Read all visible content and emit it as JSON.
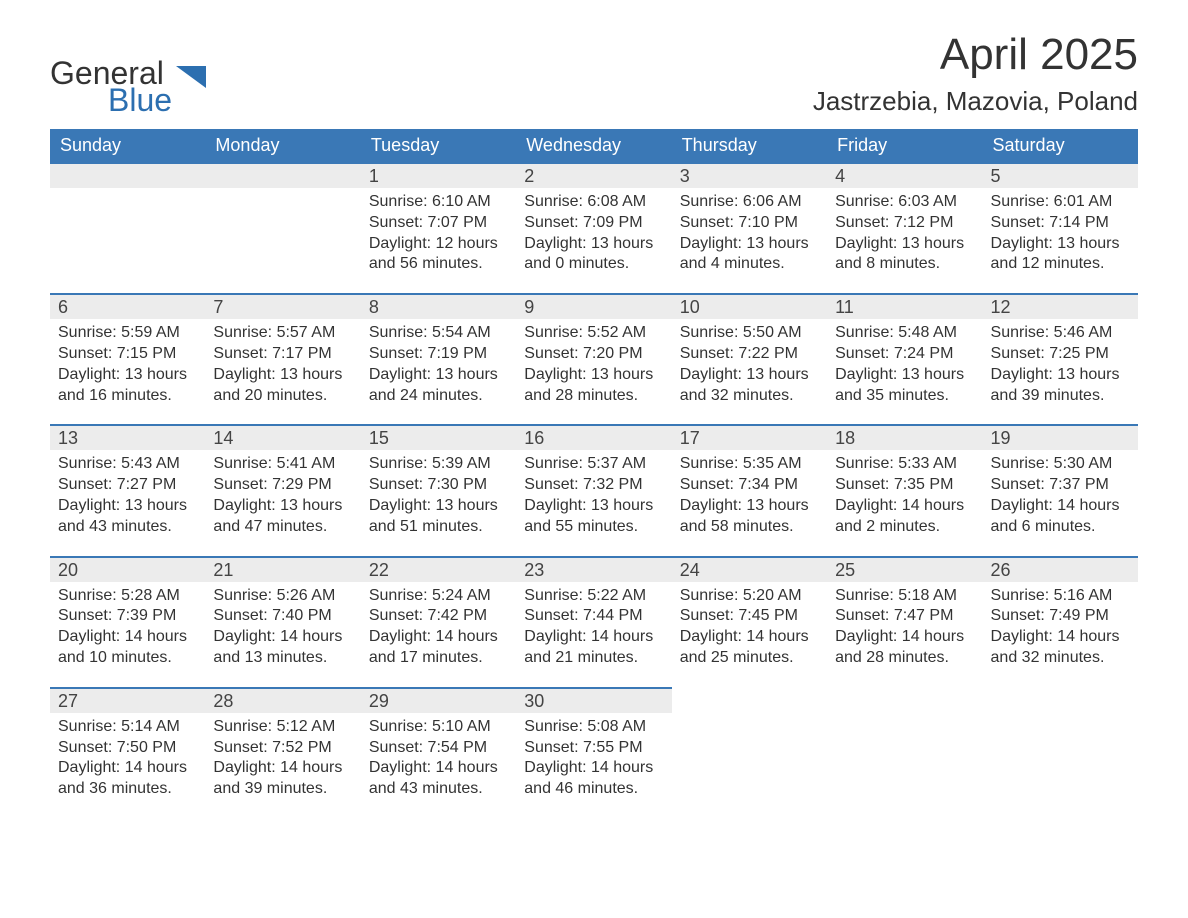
{
  "logo": {
    "text1": "General",
    "text2": "Blue",
    "color1": "#333333",
    "color2": "#2c6fb0",
    "mark_color": "#2c6fb0"
  },
  "title": {
    "month": "April 2025",
    "location": "Jastrzebia, Mazovia, Poland"
  },
  "colors": {
    "header_bg": "#3a78b6",
    "header_text": "#ffffff",
    "daynum_bg": "#ececec",
    "daynum_border": "#3a78b6",
    "body_text": "#333333",
    "page_bg": "#ffffff"
  },
  "weekdays": [
    "Sunday",
    "Monday",
    "Tuesday",
    "Wednesday",
    "Thursday",
    "Friday",
    "Saturday"
  ],
  "weeks": [
    [
      {
        "n": "",
        "sunrise": "",
        "sunset": "",
        "daylight1": "",
        "daylight2": ""
      },
      {
        "n": "",
        "sunrise": "",
        "sunset": "",
        "daylight1": "",
        "daylight2": ""
      },
      {
        "n": "1",
        "sunrise": "Sunrise: 6:10 AM",
        "sunset": "Sunset: 7:07 PM",
        "daylight1": "Daylight: 12 hours",
        "daylight2": "and 56 minutes."
      },
      {
        "n": "2",
        "sunrise": "Sunrise: 6:08 AM",
        "sunset": "Sunset: 7:09 PM",
        "daylight1": "Daylight: 13 hours",
        "daylight2": "and 0 minutes."
      },
      {
        "n": "3",
        "sunrise": "Sunrise: 6:06 AM",
        "sunset": "Sunset: 7:10 PM",
        "daylight1": "Daylight: 13 hours",
        "daylight2": "and 4 minutes."
      },
      {
        "n": "4",
        "sunrise": "Sunrise: 6:03 AM",
        "sunset": "Sunset: 7:12 PM",
        "daylight1": "Daylight: 13 hours",
        "daylight2": "and 8 minutes."
      },
      {
        "n": "5",
        "sunrise": "Sunrise: 6:01 AM",
        "sunset": "Sunset: 7:14 PM",
        "daylight1": "Daylight: 13 hours",
        "daylight2": "and 12 minutes."
      }
    ],
    [
      {
        "n": "6",
        "sunrise": "Sunrise: 5:59 AM",
        "sunset": "Sunset: 7:15 PM",
        "daylight1": "Daylight: 13 hours",
        "daylight2": "and 16 minutes."
      },
      {
        "n": "7",
        "sunrise": "Sunrise: 5:57 AM",
        "sunset": "Sunset: 7:17 PM",
        "daylight1": "Daylight: 13 hours",
        "daylight2": "and 20 minutes."
      },
      {
        "n": "8",
        "sunrise": "Sunrise: 5:54 AM",
        "sunset": "Sunset: 7:19 PM",
        "daylight1": "Daylight: 13 hours",
        "daylight2": "and 24 minutes."
      },
      {
        "n": "9",
        "sunrise": "Sunrise: 5:52 AM",
        "sunset": "Sunset: 7:20 PM",
        "daylight1": "Daylight: 13 hours",
        "daylight2": "and 28 minutes."
      },
      {
        "n": "10",
        "sunrise": "Sunrise: 5:50 AM",
        "sunset": "Sunset: 7:22 PM",
        "daylight1": "Daylight: 13 hours",
        "daylight2": "and 32 minutes."
      },
      {
        "n": "11",
        "sunrise": "Sunrise: 5:48 AM",
        "sunset": "Sunset: 7:24 PM",
        "daylight1": "Daylight: 13 hours",
        "daylight2": "and 35 minutes."
      },
      {
        "n": "12",
        "sunrise": "Sunrise: 5:46 AM",
        "sunset": "Sunset: 7:25 PM",
        "daylight1": "Daylight: 13 hours",
        "daylight2": "and 39 minutes."
      }
    ],
    [
      {
        "n": "13",
        "sunrise": "Sunrise: 5:43 AM",
        "sunset": "Sunset: 7:27 PM",
        "daylight1": "Daylight: 13 hours",
        "daylight2": "and 43 minutes."
      },
      {
        "n": "14",
        "sunrise": "Sunrise: 5:41 AM",
        "sunset": "Sunset: 7:29 PM",
        "daylight1": "Daylight: 13 hours",
        "daylight2": "and 47 minutes."
      },
      {
        "n": "15",
        "sunrise": "Sunrise: 5:39 AM",
        "sunset": "Sunset: 7:30 PM",
        "daylight1": "Daylight: 13 hours",
        "daylight2": "and 51 minutes."
      },
      {
        "n": "16",
        "sunrise": "Sunrise: 5:37 AM",
        "sunset": "Sunset: 7:32 PM",
        "daylight1": "Daylight: 13 hours",
        "daylight2": "and 55 minutes."
      },
      {
        "n": "17",
        "sunrise": "Sunrise: 5:35 AM",
        "sunset": "Sunset: 7:34 PM",
        "daylight1": "Daylight: 13 hours",
        "daylight2": "and 58 minutes."
      },
      {
        "n": "18",
        "sunrise": "Sunrise: 5:33 AM",
        "sunset": "Sunset: 7:35 PM",
        "daylight1": "Daylight: 14 hours",
        "daylight2": "and 2 minutes."
      },
      {
        "n": "19",
        "sunrise": "Sunrise: 5:30 AM",
        "sunset": "Sunset: 7:37 PM",
        "daylight1": "Daylight: 14 hours",
        "daylight2": "and 6 minutes."
      }
    ],
    [
      {
        "n": "20",
        "sunrise": "Sunrise: 5:28 AM",
        "sunset": "Sunset: 7:39 PM",
        "daylight1": "Daylight: 14 hours",
        "daylight2": "and 10 minutes."
      },
      {
        "n": "21",
        "sunrise": "Sunrise: 5:26 AM",
        "sunset": "Sunset: 7:40 PM",
        "daylight1": "Daylight: 14 hours",
        "daylight2": "and 13 minutes."
      },
      {
        "n": "22",
        "sunrise": "Sunrise: 5:24 AM",
        "sunset": "Sunset: 7:42 PM",
        "daylight1": "Daylight: 14 hours",
        "daylight2": "and 17 minutes."
      },
      {
        "n": "23",
        "sunrise": "Sunrise: 5:22 AM",
        "sunset": "Sunset: 7:44 PM",
        "daylight1": "Daylight: 14 hours",
        "daylight2": "and 21 minutes."
      },
      {
        "n": "24",
        "sunrise": "Sunrise: 5:20 AM",
        "sunset": "Sunset: 7:45 PM",
        "daylight1": "Daylight: 14 hours",
        "daylight2": "and 25 minutes."
      },
      {
        "n": "25",
        "sunrise": "Sunrise: 5:18 AM",
        "sunset": "Sunset: 7:47 PM",
        "daylight1": "Daylight: 14 hours",
        "daylight2": "and 28 minutes."
      },
      {
        "n": "26",
        "sunrise": "Sunrise: 5:16 AM",
        "sunset": "Sunset: 7:49 PM",
        "daylight1": "Daylight: 14 hours",
        "daylight2": "and 32 minutes."
      }
    ],
    [
      {
        "n": "27",
        "sunrise": "Sunrise: 5:14 AM",
        "sunset": "Sunset: 7:50 PM",
        "daylight1": "Daylight: 14 hours",
        "daylight2": "and 36 minutes."
      },
      {
        "n": "28",
        "sunrise": "Sunrise: 5:12 AM",
        "sunset": "Sunset: 7:52 PM",
        "daylight1": "Daylight: 14 hours",
        "daylight2": "and 39 minutes."
      },
      {
        "n": "29",
        "sunrise": "Sunrise: 5:10 AM",
        "sunset": "Sunset: 7:54 PM",
        "daylight1": "Daylight: 14 hours",
        "daylight2": "and 43 minutes."
      },
      {
        "n": "30",
        "sunrise": "Sunrise: 5:08 AM",
        "sunset": "Sunset: 7:55 PM",
        "daylight1": "Daylight: 14 hours",
        "daylight2": "and 46 minutes."
      },
      {
        "n": "",
        "sunrise": "",
        "sunset": "",
        "daylight1": "",
        "daylight2": ""
      },
      {
        "n": "",
        "sunrise": "",
        "sunset": "",
        "daylight1": "",
        "daylight2": ""
      },
      {
        "n": "",
        "sunrise": "",
        "sunset": "",
        "daylight1": "",
        "daylight2": ""
      }
    ]
  ]
}
